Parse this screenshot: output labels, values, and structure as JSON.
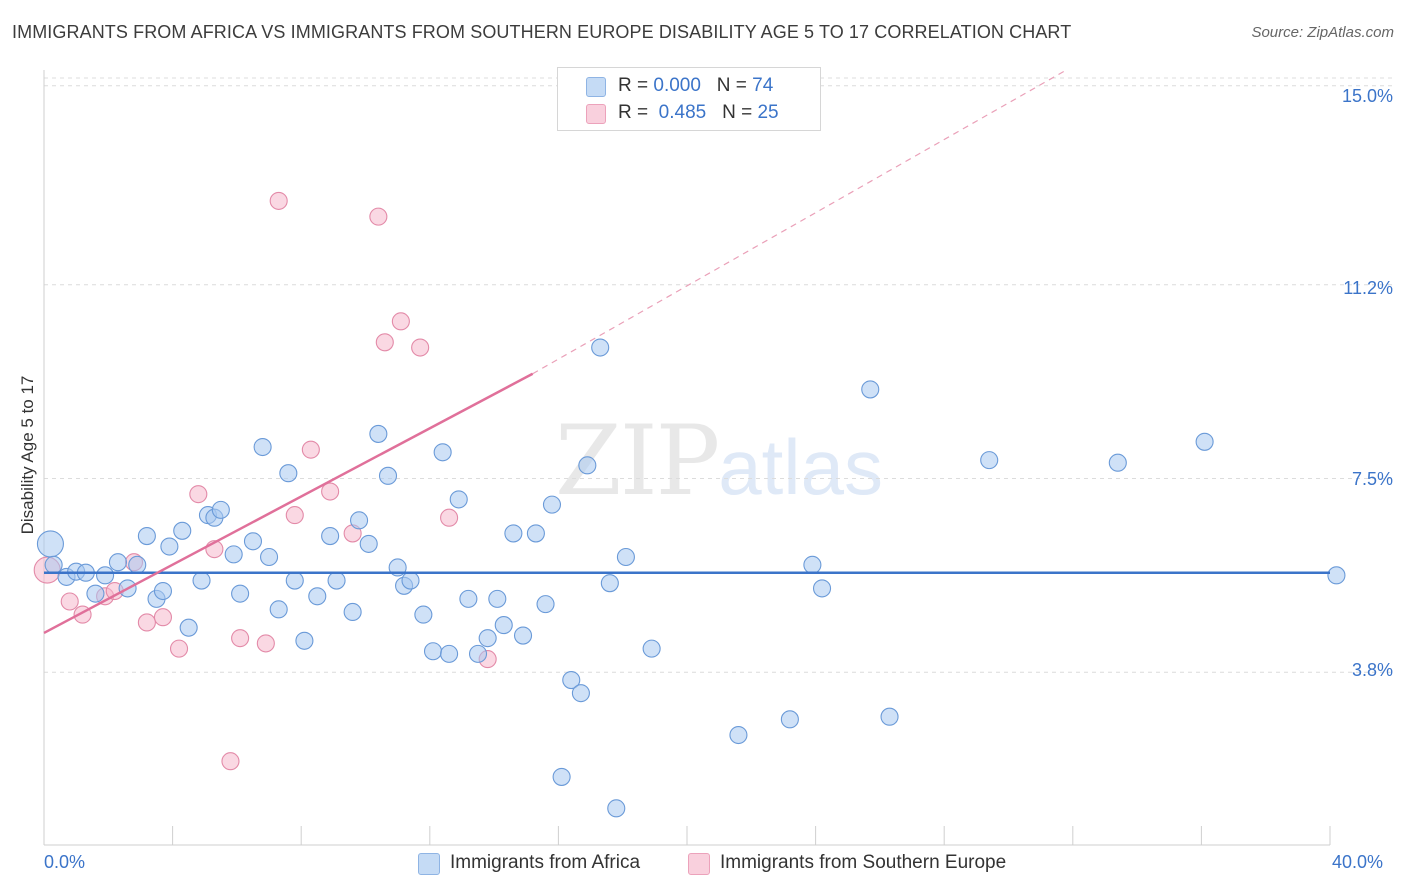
{
  "title": "IMMIGRANTS FROM AFRICA VS IMMIGRANTS FROM SOUTHERN EUROPE DISABILITY AGE 5 TO 17 CORRELATION CHART",
  "source": "Source: ZipAtlas.com",
  "watermark": {
    "zip": "ZIP",
    "atlas": "atlas"
  },
  "legend": {
    "rows": [
      {
        "r_label": "R =",
        "r_value": "0.000",
        "n_label": "N =",
        "n_value": "74",
        "color": "#a8c8f0"
      },
      {
        "r_label": "R =",
        "r_value": "0.485",
        "n_label": "N =",
        "n_value": "25",
        "color": "#f5b8cc"
      }
    ]
  },
  "bottom_legend": [
    {
      "label": "Immigrants from Africa",
      "color": "#a8c8f0"
    },
    {
      "label": "Immigrants from Southern Europe",
      "color": "#f5b8cc"
    }
  ],
  "chart_data": {
    "type": "scatter",
    "title": "IMMIGRANTS FROM AFRICA VS IMMIGRANTS FROM SOUTHERN EUROPE DISABILITY AGE 5 TO 17 CORRELATION CHART",
    "xlabel": "",
    "ylabel": "Disability Age 5 to 17",
    "xlim": [
      0,
      40
    ],
    "ylim": [
      0.5,
      15.3
    ],
    "x_tick_labels": [
      "0.0%",
      "40.0%"
    ],
    "y_ticks": [
      3.8,
      7.5,
      11.2,
      15.0
    ],
    "y_tick_labels": [
      "3.8%",
      "7.5%",
      "11.2%",
      "15.0%"
    ],
    "grid": true,
    "series": [
      {
        "name": "Immigrants from Africa",
        "color": "#a8c8f0",
        "stroke": "#6a9ad8",
        "trend": {
          "x": [
            0,
            40
          ],
          "y": [
            5.7,
            5.7
          ],
          "color": "#3b74c9"
        },
        "points": [
          [
            0.2,
            6.25
          ],
          [
            0.3,
            5.85
          ],
          [
            0.7,
            5.62
          ],
          [
            1.0,
            5.72
          ],
          [
            1.3,
            5.7
          ],
          [
            1.6,
            5.3
          ],
          [
            1.9,
            5.65
          ],
          [
            2.3,
            5.9
          ],
          [
            2.6,
            5.4
          ],
          [
            2.9,
            5.85
          ],
          [
            3.2,
            6.4
          ],
          [
            3.5,
            5.2
          ],
          [
            3.7,
            5.35
          ],
          [
            3.9,
            6.2
          ],
          [
            4.3,
            6.5
          ],
          [
            4.5,
            4.65
          ],
          [
            4.9,
            5.55
          ],
          [
            5.1,
            6.8
          ],
          [
            5.3,
            6.75
          ],
          [
            5.5,
            6.9
          ],
          [
            5.9,
            6.05
          ],
          [
            6.1,
            5.3
          ],
          [
            6.5,
            6.3
          ],
          [
            6.8,
            8.1
          ],
          [
            7.0,
            6.0
          ],
          [
            7.3,
            5.0
          ],
          [
            7.6,
            7.6
          ],
          [
            7.8,
            5.55
          ],
          [
            8.1,
            4.4
          ],
          [
            8.5,
            5.25
          ],
          [
            8.9,
            6.4
          ],
          [
            9.1,
            5.55
          ],
          [
            9.6,
            4.95
          ],
          [
            9.8,
            6.7
          ],
          [
            10.1,
            6.25
          ],
          [
            10.4,
            8.35
          ],
          [
            10.7,
            7.55
          ],
          [
            11.0,
            5.8
          ],
          [
            11.2,
            5.45
          ],
          [
            11.4,
            5.55
          ],
          [
            11.8,
            4.9
          ],
          [
            12.1,
            4.2
          ],
          [
            12.4,
            8.0
          ],
          [
            12.6,
            4.15
          ],
          [
            12.9,
            7.1
          ],
          [
            13.2,
            5.2
          ],
          [
            13.5,
            4.15
          ],
          [
            13.8,
            4.45
          ],
          [
            14.1,
            5.2
          ],
          [
            14.3,
            4.7
          ],
          [
            14.6,
            6.45
          ],
          [
            14.9,
            4.5
          ],
          [
            15.3,
            6.45
          ],
          [
            15.6,
            5.1
          ],
          [
            15.8,
            7.0
          ],
          [
            16.1,
            1.8
          ],
          [
            16.4,
            3.65
          ],
          [
            16.7,
            3.4
          ],
          [
            16.9,
            7.75
          ],
          [
            17.3,
            10.0
          ],
          [
            17.6,
            5.5
          ],
          [
            17.8,
            1.2
          ],
          [
            18.1,
            6.0
          ],
          [
            18.9,
            4.25
          ],
          [
            21.6,
            2.6
          ],
          [
            23.2,
            2.9
          ],
          [
            23.9,
            5.85
          ],
          [
            24.2,
            5.4
          ],
          [
            25.7,
            9.2
          ],
          [
            26.3,
            2.95
          ],
          [
            29.4,
            7.85
          ],
          [
            33.4,
            7.8
          ],
          [
            36.1,
            8.2
          ],
          [
            40.2,
            5.65
          ]
        ]
      },
      {
        "name": "Immigrants from Southern Europe",
        "color": "#f5b8cc",
        "stroke": "#e38aa8",
        "trend": {
          "x": [
            0,
            15.2
          ],
          "y": [
            4.55,
            9.5
          ],
          "dash_to": [
            31.8,
            15.3
          ],
          "color": "#e0709a"
        },
        "points": [
          [
            0.1,
            5.75
          ],
          [
            0.8,
            5.15
          ],
          [
            1.2,
            4.9
          ],
          [
            1.9,
            5.25
          ],
          [
            2.2,
            5.35
          ],
          [
            2.8,
            5.9
          ],
          [
            3.2,
            4.75
          ],
          [
            3.7,
            4.85
          ],
          [
            4.2,
            4.25
          ],
          [
            4.8,
            7.2
          ],
          [
            5.3,
            6.15
          ],
          [
            5.8,
            2.1
          ],
          [
            6.1,
            4.45
          ],
          [
            6.9,
            4.35
          ],
          [
            7.3,
            12.8
          ],
          [
            7.8,
            6.8
          ],
          [
            8.3,
            8.05
          ],
          [
            8.9,
            7.25
          ],
          [
            9.6,
            6.45
          ],
          [
            10.4,
            12.5
          ],
          [
            10.6,
            10.1
          ],
          [
            11.1,
            10.5
          ],
          [
            11.7,
            10.0
          ],
          [
            12.6,
            6.75
          ],
          [
            13.8,
            4.05
          ]
        ]
      }
    ]
  }
}
